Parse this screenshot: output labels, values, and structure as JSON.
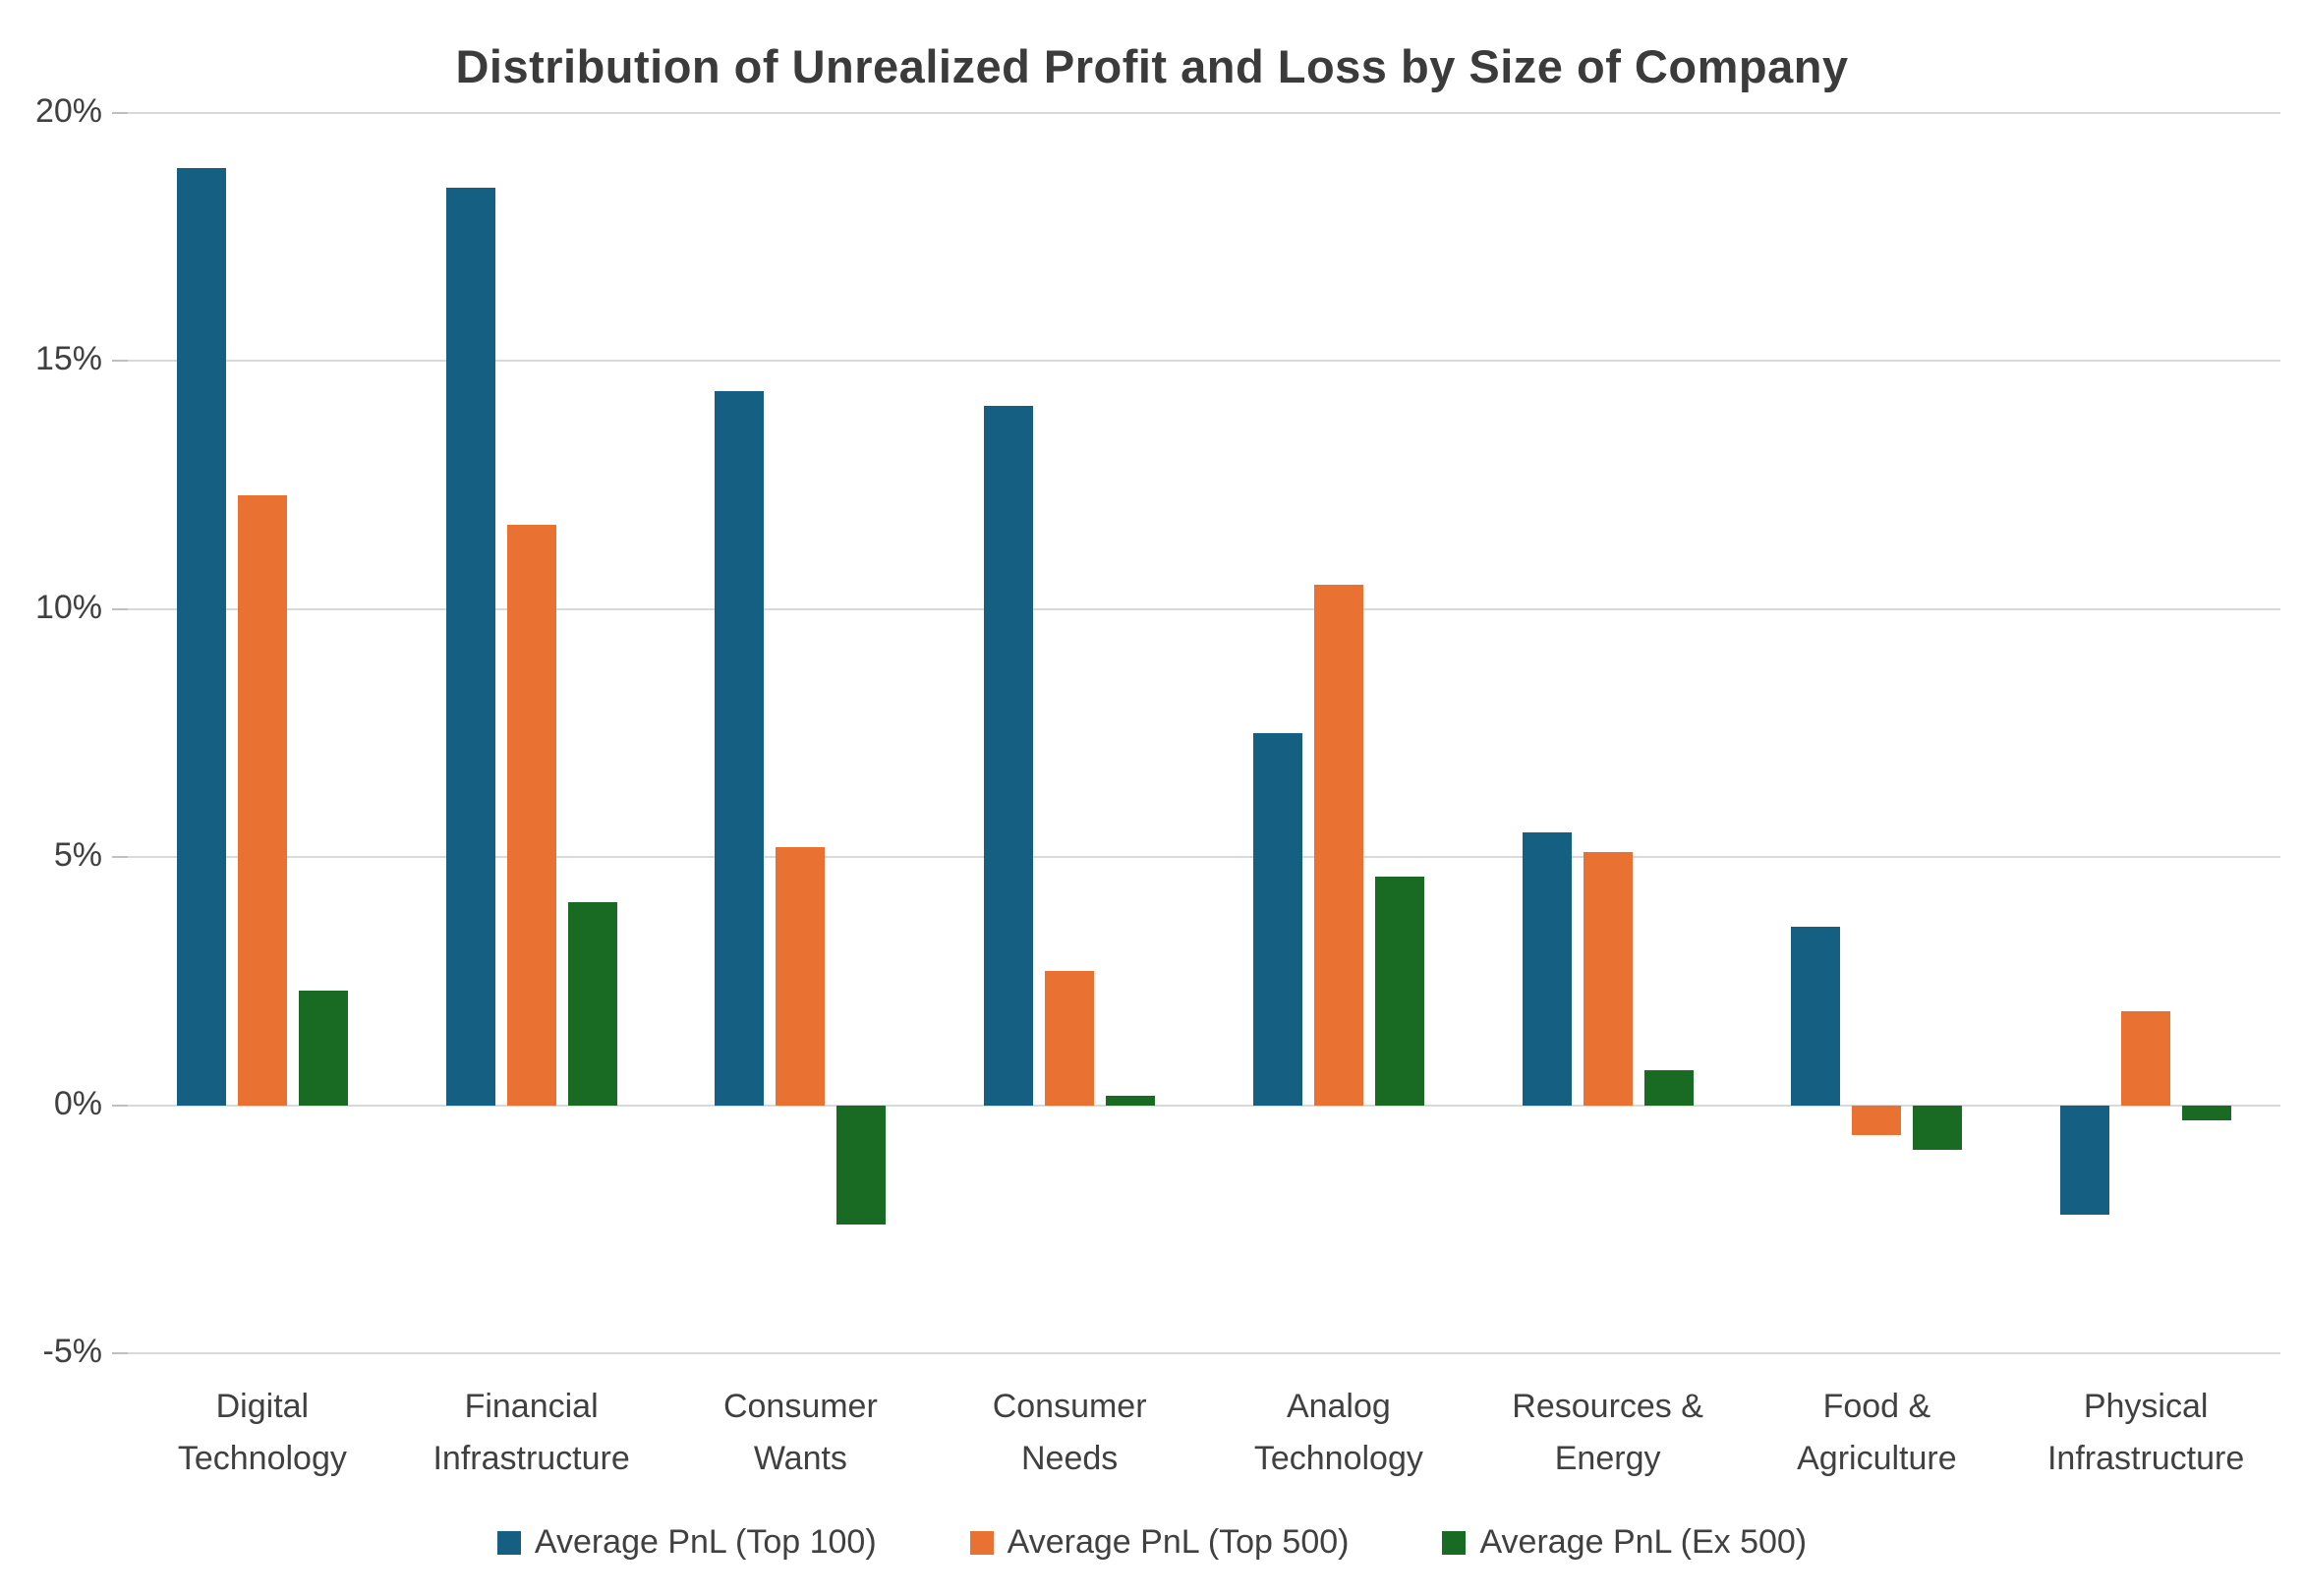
{
  "chart_data": {
    "type": "bar",
    "title": "Distribution of Unrealized Profit and Loss by Size of Company",
    "categories": [
      "Digital Technology",
      "Financial Infrastructure",
      "Consumer Wants",
      "Consumer Needs",
      "Analog Technology",
      "Resources & Energy",
      "Food & Agriculture",
      "Physical Infrastructure"
    ],
    "series": [
      {
        "name": "Average PnL (Top 100)",
        "color": "#156082",
        "values": [
          18.9,
          18.5,
          14.4,
          14.1,
          7.5,
          5.5,
          3.6,
          -2.2
        ]
      },
      {
        "name": "Average PnL (Top 500)",
        "color": "#E97132",
        "values": [
          12.3,
          11.7,
          5.2,
          2.7,
          10.5,
          5.1,
          -0.6,
          1.9
        ]
      },
      {
        "name": "Average PnL (Ex 500)",
        "color": "#196B24",
        "values": [
          2.3,
          4.1,
          -2.4,
          0.2,
          4.6,
          0.7,
          -0.9,
          -0.3
        ]
      }
    ],
    "yaxis": {
      "min": -5,
      "max": 20,
      "ticks": [
        20,
        15,
        10,
        5,
        0,
        -5
      ],
      "tick_suffix": "%"
    },
    "xlabel": "",
    "ylabel": "",
    "grid": true,
    "legend_position": "bottom"
  },
  "colors": {
    "background": "#FFFFFF",
    "grid": "#D9D9D9",
    "tick": "#BFBFBF",
    "title_text": "#3B3B3B",
    "axis_text": "#404040"
  }
}
